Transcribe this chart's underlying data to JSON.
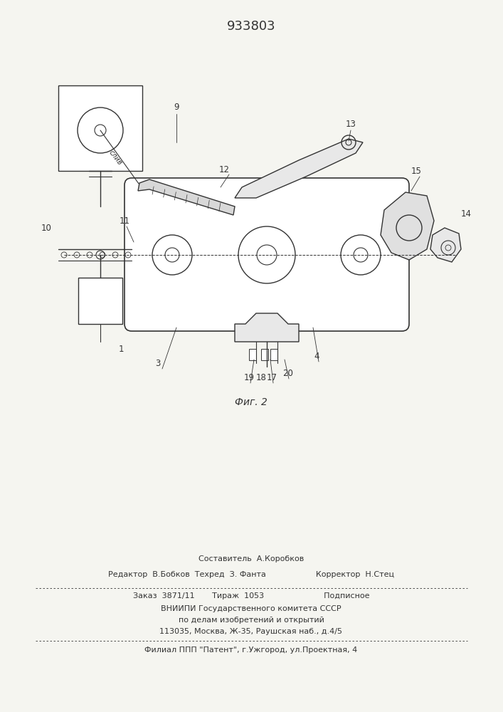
{
  "patent_number": "933803",
  "fig_label": "Фиг. 2",
  "bg_color": "#f5f5f0",
  "line_color": "#333333",
  "footer": {
    "sestavitel": "Составитель  А.Коробков",
    "redaktor_line": "Редактор  В.Бобков  Техред  З. Фанта                    Корректор  Н.Стец",
    "zakaz_line": "Заказ  3871/11       Тираж  1053                        Подписное",
    "vniip_line": "ВНИИПИ Государственного комитета СССР",
    "dela_line": "по делам изобретений и открытий",
    "addr_line": "113035, Москва, Ж-35, Раушская наб., д.4/5",
    "filial_line": "Филиал ППП \"Патент\", г.Ужгород, ул.Проектная, 4"
  }
}
